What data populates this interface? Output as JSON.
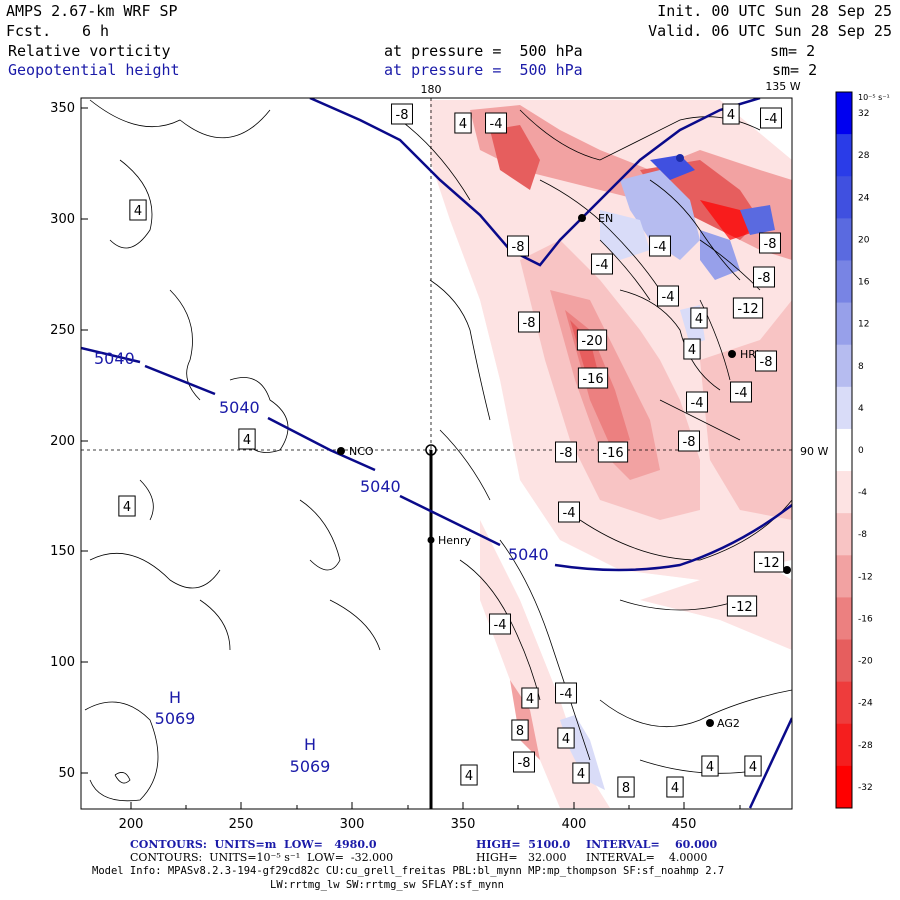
{
  "header": {
    "model": "AMPS 2.67-km WRF SP",
    "fcst_label": "Fcst.",
    "fcst_value": "6 h",
    "init": "Init. 00 UTC Sun 28 Sep 25",
    "valid": "Valid. 06 UTC Sun 28 Sep 25",
    "field1": "Relative vorticity",
    "field1_level": "at pressure =  500 hPa",
    "field1_sm": "sm= 2",
    "field2": "Geopotential height",
    "field2_level": "at pressure =  500 hPa",
    "field2_sm": "sm= 2"
  },
  "map": {
    "lon_180": "180",
    "lon_135w": "135 W",
    "lon_90w": "90 W",
    "x_ticks": [
      "200",
      "250",
      "300",
      "350",
      "400",
      "450"
    ],
    "y_ticks": [
      "350",
      "300",
      "250",
      "200",
      "150",
      "100",
      "50"
    ],
    "stations": [
      "NCO",
      "Henry",
      "AG2",
      "EN",
      "HRL"
    ],
    "height_labels": [
      "5040",
      "5040",
      "5040",
      "5040"
    ],
    "highs": [
      {
        "mark": "H",
        "value": "5069"
      },
      {
        "mark": "H",
        "value": "5069"
      }
    ],
    "vort_labels": [
      "-8",
      "4",
      "-4",
      "4",
      "-4",
      "4",
      "-8",
      "-4",
      "-4",
      "-8",
      "-4",
      "-8",
      "-12",
      "-20",
      "4",
      "4",
      "-16",
      "-8",
      "-4",
      "-8",
      "4",
      "-8",
      "-16",
      "-4",
      "-8",
      "4",
      "-4",
      "-4",
      "4",
      "-4",
      "8",
      "4",
      "-8",
      "4",
      "4",
      "8",
      "4",
      "4",
      "4",
      "-12",
      "-12"
    ]
  },
  "colorbar": {
    "unit": "10⁻⁵ s⁻¹",
    "labels": [
      "32",
      "28",
      "24",
      "20",
      "16",
      "12",
      "8",
      "4",
      "0",
      "-4",
      "-8",
      "-12",
      "-16",
      "-20",
      "-24",
      "-28",
      "-32"
    ],
    "colors": [
      "#0000f0",
      "#2a3ce8",
      "#4050e0",
      "#5a6ae0",
      "#7884e4",
      "#97a0ea",
      "#b6bcf0",
      "#d9dcf8",
      "#ffffff",
      "#fde3e3",
      "#f8c4c4",
      "#f2a2a2",
      "#ec8080",
      "#e65e5e",
      "#ee3c3c",
      "#f51e1e",
      "#ff0000"
    ]
  },
  "footer": {
    "c1_label": "CONTOURS:  UNITS=m  LOW=   4980.0",
    "c1_high": "HIGH=  5100.0",
    "c1_int": "INTERVAL=    60.000",
    "c2_label": "CONTOURS:  UNITS=10⁻⁵ s⁻¹  LOW=  -32.000",
    "c2_high": "HIGH=   32.000",
    "c2_int": "INTERVAL=    4.0000",
    "model_info": "Model Info: MPASv8.2.3-194-gf29cd82c CU:cu_grell_freitas PBL:bl_mynn MP:mp_thompson SF:sf_noahmp 2.7",
    "model_info2": "LW:rrtmg_lw SW:rrtmg_sw SFLAY:sf_mynn"
  }
}
